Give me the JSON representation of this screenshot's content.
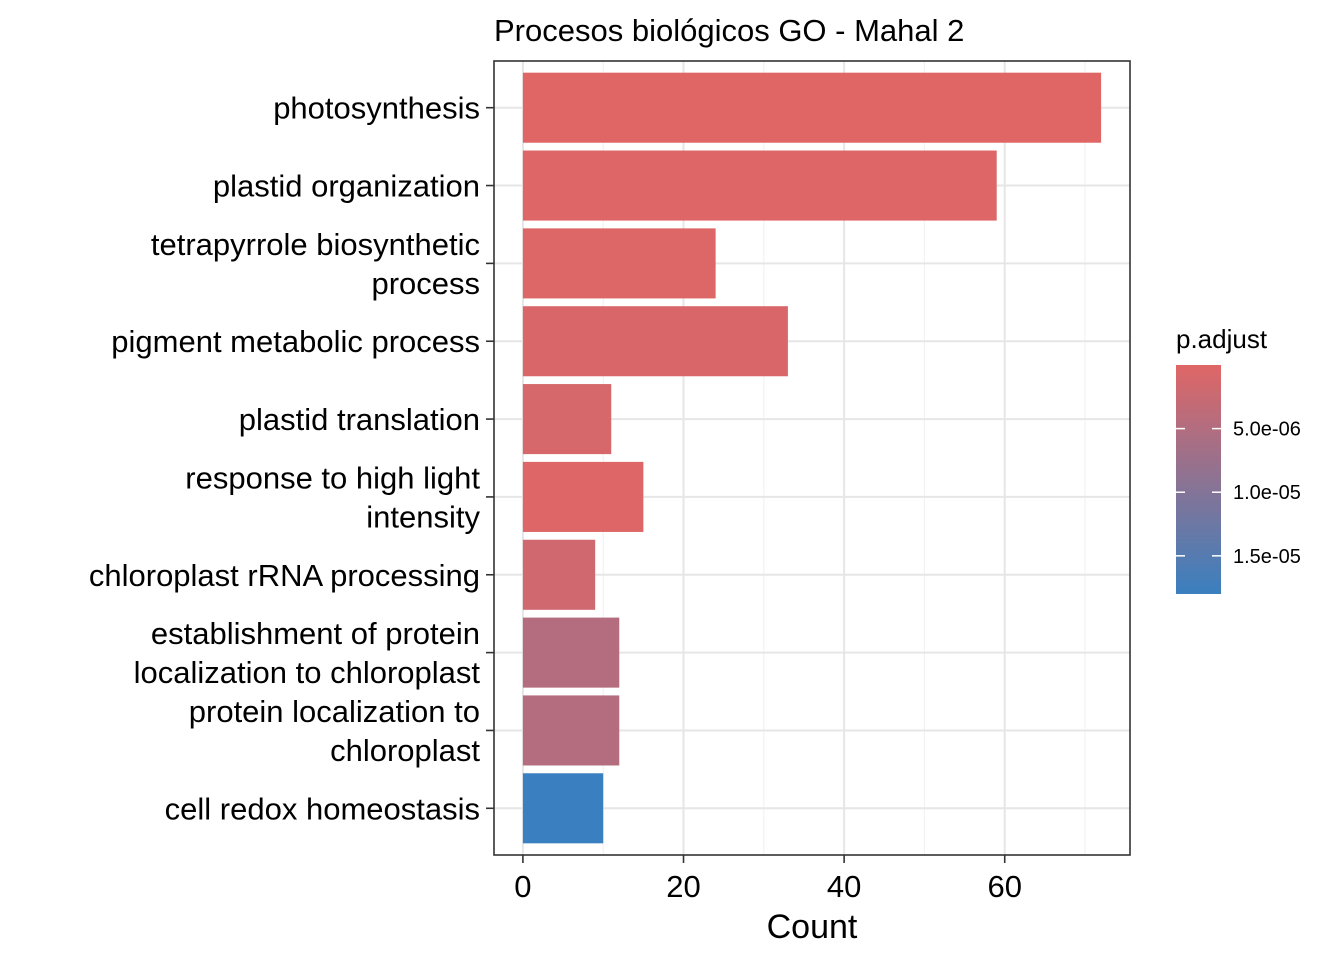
{
  "chart_data": {
    "type": "bar",
    "orientation": "horizontal",
    "title": "Procesos biológicos GO - Mahal 2",
    "xlabel": "Count",
    "ylabel": "",
    "xlim": [
      -3.6,
      75.6
    ],
    "x_ticks": [
      0,
      20,
      40,
      60
    ],
    "x_tick_labels": [
      "0",
      "20",
      "40",
      "60"
    ],
    "grid": true,
    "categories": [
      [
        "photosynthesis"
      ],
      [
        "plastid organization"
      ],
      [
        "tetrapyrrole biosynthetic",
        "process"
      ],
      [
        "pigment metabolic process"
      ],
      [
        "plastid translation"
      ],
      [
        "response to high light",
        "intensity"
      ],
      [
        "chloroplast rRNA processing"
      ],
      [
        "establishment of protein",
        "localization to chloroplast"
      ],
      [
        "protein localization to",
        "chloroplast"
      ],
      [
        "cell redox homeostasis"
      ]
    ],
    "values": [
      72,
      59,
      24,
      33,
      11,
      15,
      9,
      12,
      12,
      10
    ],
    "p_adjust": [
      1e-09,
      1.2e-07,
      3e-07,
      8e-07,
      1.1e-06,
      2e-07,
      1.8e-06,
      4.8e-06,
      4.8e-06,
      1.8e-05
    ],
    "legend": {
      "title": "p.adjust",
      "position": "right",
      "ticks": [
        5e-06,
        1e-05,
        1.5e-05
      ],
      "tick_labels": [
        "5.0e-06",
        "1.0e-05",
        "1.5e-05"
      ],
      "range": [
        1e-09,
        1.8e-05
      ],
      "color_low": "#e06666",
      "color_high": "#3a7fbf"
    }
  }
}
